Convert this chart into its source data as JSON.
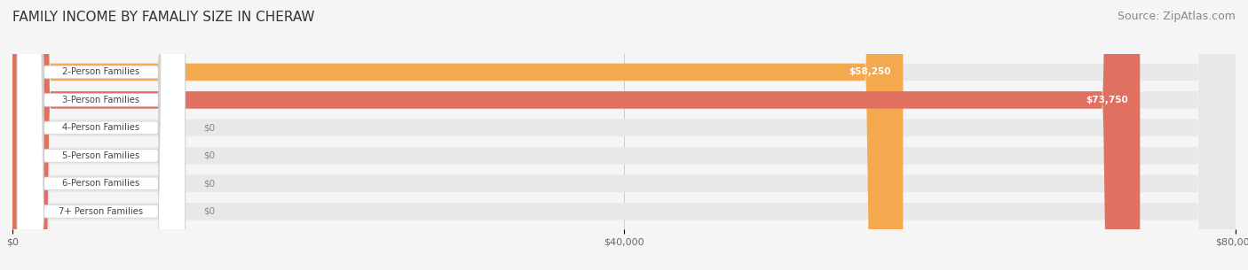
{
  "title": "FAMILY INCOME BY FAMALIY SIZE IN CHERAW",
  "source": "Source: ZipAtlas.com",
  "categories": [
    "2-Person Families",
    "3-Person Families",
    "4-Person Families",
    "5-Person Families",
    "6-Person Families",
    "7+ Person Families"
  ],
  "values": [
    58250,
    73750,
    0,
    0,
    0,
    0
  ],
  "bar_colors": [
    "#f5a94e",
    "#e07060",
    "#a8b8e0",
    "#c4a8d4",
    "#7ec8c8",
    "#b8c4e0"
  ],
  "xlim": [
    0,
    80000
  ],
  "xticks": [
    0,
    40000,
    80000
  ],
  "xtick_labels": [
    "$0",
    "$40,000",
    "$80,000"
  ],
  "background_color": "#f5f5f5",
  "title_fontsize": 11,
  "source_fontsize": 9
}
